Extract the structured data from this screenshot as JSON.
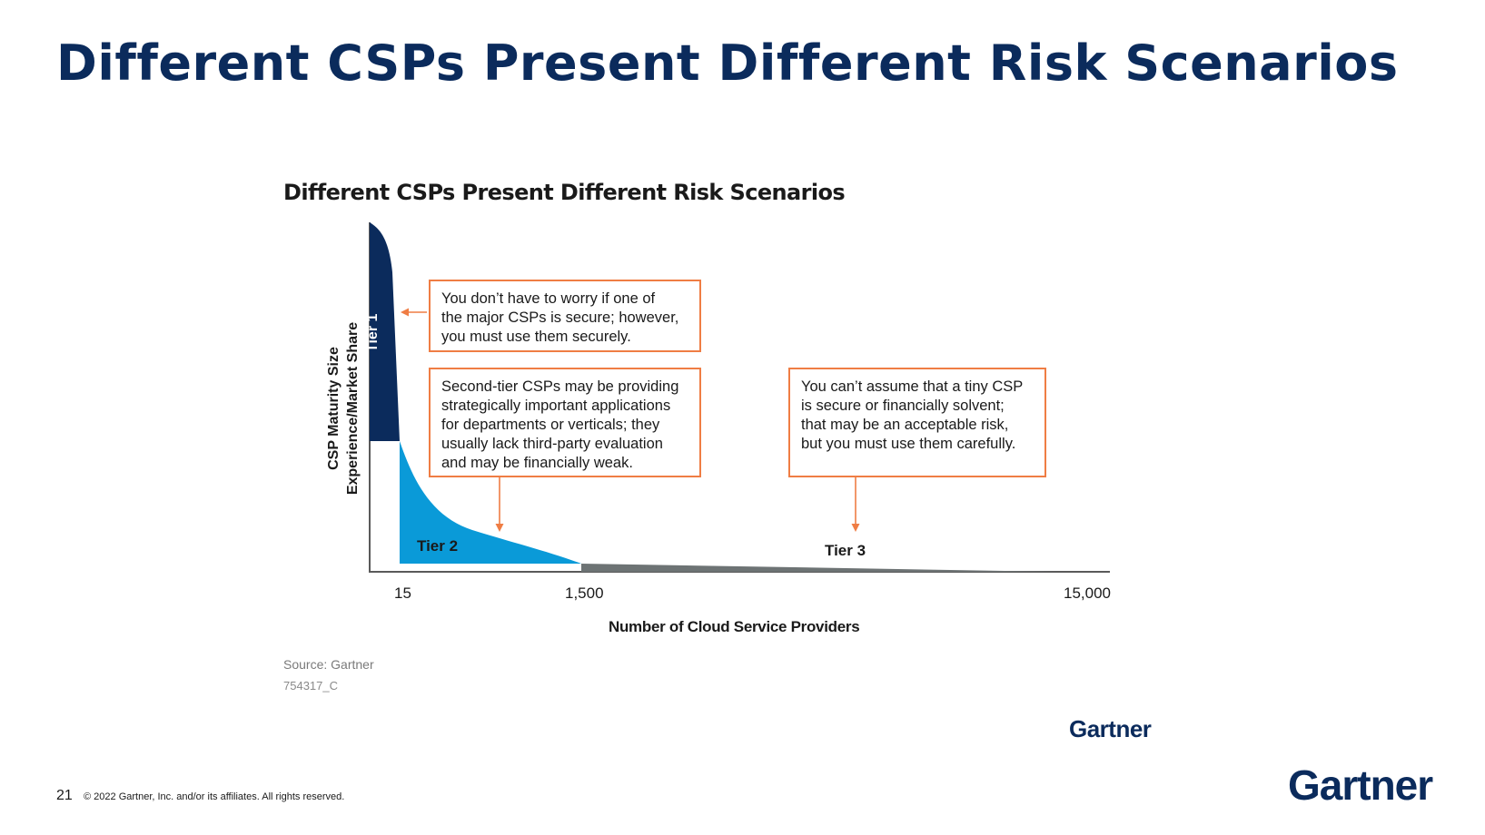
{
  "slide": {
    "title": "Different CSPs Present Different Risk Scenarios",
    "page_number": "21",
    "copyright": "© 2022 Gartner, Inc. and/or its affiliates. All rights reserved.",
    "logo": "Gartner"
  },
  "figure": {
    "title": "Different CSPs Present Different Risk Scenarios",
    "y_axis_label_line1": "CSP Maturity Size",
    "y_axis_label_line2": "Experience/Market Share",
    "x_axis_label": "Number of Cloud Service Providers",
    "x_ticks": [
      "15",
      "1,500",
      "15,000"
    ],
    "tiers": [
      {
        "label": "Tier 1",
        "color": "#0b2b5c"
      },
      {
        "label": "Tier 2",
        "color": "#0a9ad8"
      },
      {
        "label": "Tier 3",
        "color": "#6d7374"
      }
    ],
    "annotations": [
      {
        "lines": [
          "You don’t have to worry if one of",
          "the major CSPs is secure; however,",
          "you must use them securely."
        ]
      },
      {
        "lines": [
          "Second-tier CSPs may be providing",
          "strategically important applications",
          "for departments or verticals; they",
          "usually lack third-party evaluation",
          "and may be financially weak."
        ]
      },
      {
        "lines": [
          "You can’t assume that a tiny CSP",
          "is secure or financially solvent;",
          "that may be an acceptable risk,",
          "but you must use them carefully."
        ]
      }
    ],
    "annotation_color": "#ef7d44",
    "source": "Source: Gartner",
    "figure_id": "754317_C",
    "logo": "Gartner"
  }
}
